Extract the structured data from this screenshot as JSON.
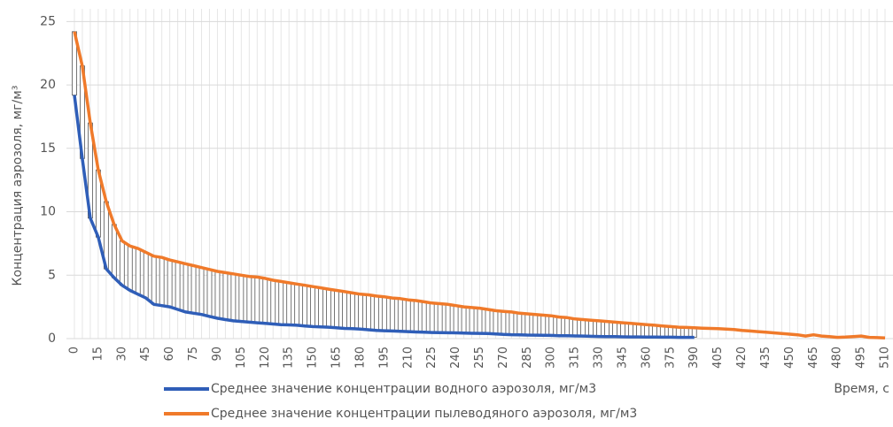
{
  "chart_data": {
    "type": "line",
    "xlabel": "Время, с",
    "ylabel": "Концентрация аэрозоля, мг/м³",
    "x": [
      0,
      5,
      10,
      15,
      20,
      25,
      30,
      35,
      40,
      45,
      50,
      55,
      60,
      65,
      70,
      75,
      80,
      85,
      90,
      95,
      100,
      105,
      110,
      115,
      120,
      125,
      130,
      135,
      140,
      145,
      150,
      155,
      160,
      165,
      170,
      175,
      180,
      185,
      190,
      195,
      200,
      205,
      210,
      215,
      220,
      225,
      230,
      235,
      240,
      245,
      250,
      255,
      260,
      265,
      270,
      275,
      280,
      285,
      290,
      295,
      300,
      305,
      310,
      315,
      320,
      325,
      330,
      335,
      340,
      345,
      350,
      355,
      360,
      365,
      370,
      375,
      380,
      385,
      390,
      395,
      400,
      405,
      410,
      415,
      420,
      425,
      430,
      435,
      440,
      445,
      450,
      455,
      460,
      465,
      470,
      475,
      480,
      485,
      490,
      495,
      500,
      505,
      510
    ],
    "series": [
      {
        "name": "Среднее значение концентрации водного аэрозоля, мг/м3",
        "color": "#2f5eb8",
        "values": [
          19.2,
          14.2,
          9.5,
          8.0,
          5.5,
          4.8,
          4.2,
          3.8,
          3.5,
          3.2,
          2.7,
          2.6,
          2.5,
          2.3,
          2.1,
          2.0,
          1.9,
          1.75,
          1.6,
          1.5,
          1.4,
          1.35,
          1.3,
          1.25,
          1.2,
          1.15,
          1.1,
          1.08,
          1.05,
          1.0,
          0.95,
          0.92,
          0.9,
          0.85,
          0.8,
          0.78,
          0.75,
          0.7,
          0.65,
          0.62,
          0.6,
          0.57,
          0.55,
          0.52,
          0.5,
          0.48,
          0.47,
          0.46,
          0.45,
          0.43,
          0.42,
          0.41,
          0.4,
          0.37,
          0.33,
          0.31,
          0.3,
          0.28,
          0.27,
          0.26,
          0.25,
          0.23,
          0.22,
          0.21,
          0.2,
          0.18,
          0.17,
          0.16,
          0.15,
          0.14,
          0.13,
          0.13,
          0.12,
          0.12,
          0.11,
          0.11,
          0.1,
          0.1,
          0.1,
          null,
          null,
          null,
          null,
          null,
          null,
          null,
          null,
          null,
          null,
          null,
          null,
          null,
          null,
          null,
          null,
          null,
          null,
          null,
          null,
          null,
          null,
          null,
          null
        ]
      },
      {
        "name": "Среднее значение концентрации пылеводяного аэрозоля, мг/м3",
        "color": "#f07a2a",
        "values": [
          24.2,
          21.5,
          17.0,
          13.3,
          10.8,
          9.0,
          7.7,
          7.3,
          7.1,
          6.8,
          6.5,
          6.4,
          6.2,
          6.05,
          5.9,
          5.75,
          5.6,
          5.45,
          5.3,
          5.2,
          5.1,
          5.0,
          4.9,
          4.85,
          4.75,
          4.6,
          4.5,
          4.4,
          4.3,
          4.2,
          4.1,
          4.0,
          3.9,
          3.8,
          3.7,
          3.6,
          3.5,
          3.45,
          3.35,
          3.3,
          3.2,
          3.15,
          3.05,
          3.0,
          2.9,
          2.8,
          2.75,
          2.7,
          2.6,
          2.5,
          2.45,
          2.4,
          2.3,
          2.2,
          2.15,
          2.1,
          2.0,
          1.95,
          1.9,
          1.85,
          1.8,
          1.7,
          1.65,
          1.55,
          1.5,
          1.45,
          1.4,
          1.35,
          1.3,
          1.25,
          1.2,
          1.15,
          1.1,
          1.05,
          1.0,
          0.95,
          0.9,
          0.88,
          0.85,
          0.82,
          0.8,
          0.78,
          0.75,
          0.72,
          0.65,
          0.6,
          0.55,
          0.5,
          0.45,
          0.4,
          0.35,
          0.3,
          0.2,
          0.3,
          0.2,
          0.15,
          0.1,
          0.12,
          0.15,
          0.2,
          0.1,
          0.08,
          0.05
        ]
      }
    ],
    "xlim": [
      -5,
      515
    ],
    "xticks": [
      0,
      15,
      30,
      45,
      60,
      75,
      90,
      105,
      120,
      135,
      150,
      165,
      180,
      195,
      210,
      225,
      240,
      255,
      270,
      285,
      300,
      315,
      330,
      345,
      360,
      375,
      390,
      405,
      420,
      435,
      450,
      465,
      480,
      495,
      510
    ],
    "ylim": [
      0,
      26
    ],
    "yticks": [
      0,
      5,
      10,
      15,
      20,
      25
    ],
    "grid": true
  }
}
